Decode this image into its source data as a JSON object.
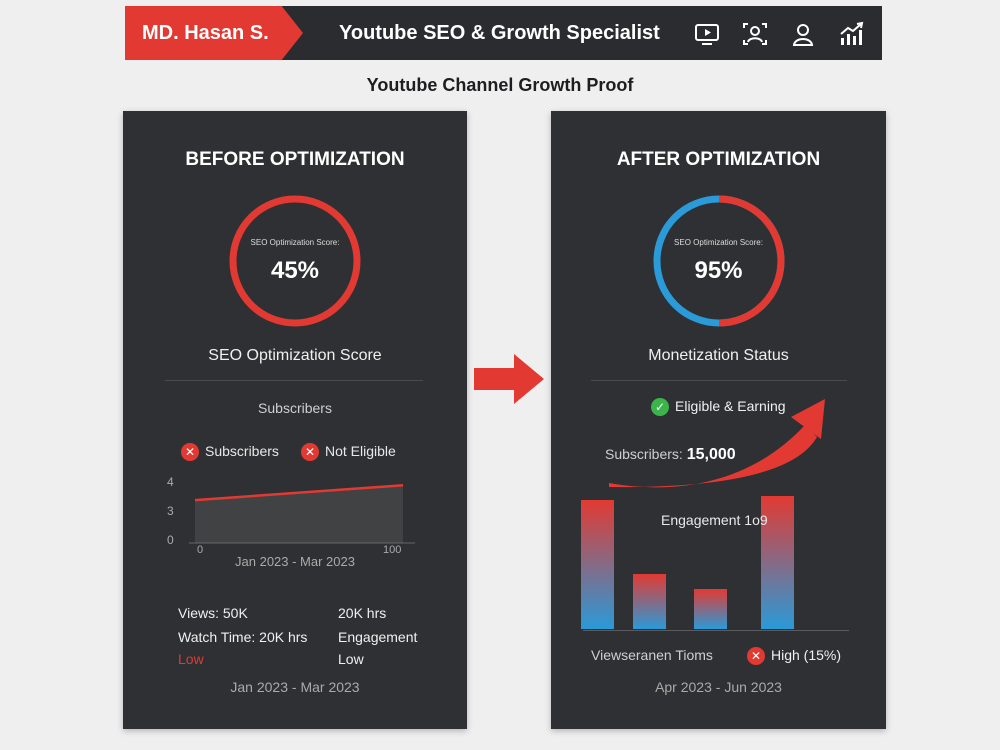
{
  "header": {
    "name": "MD. Hasan S.",
    "title": "Youtube SEO & Growth Specialist",
    "icons": [
      "video-play-icon",
      "audience-icon",
      "user-icon",
      "growth-chart-icon"
    ]
  },
  "subtitle": "Youtube Channel Growth Proof",
  "before": {
    "title": "BEFORE OPTIMIZATION",
    "ring_label": "SEO Optimization Score:",
    "ring_value": "45%",
    "ring_fraction": 0.45,
    "section_title": "SEO Optimization Score",
    "subs_heading": "Subscribers",
    "badge_subscribers": "Subscribers",
    "badge_eligible": "Not Eligible",
    "chart_data": {
      "type": "line",
      "y_ticks": [
        "4",
        "3",
        "0"
      ],
      "x_start": "0",
      "x_end": "100",
      "x_caption": "Jan 2023 - Mar 2023",
      "ylim": [
        0,
        4
      ],
      "series": [
        {
          "values": [
            2.6,
            3.5
          ]
        }
      ]
    },
    "views": "Views: 50K",
    "watch_time": "Watch Time: 20K hrs",
    "low_left": "Low",
    "hrs": "20K hrs",
    "engagement": "Engagement",
    "low_right": "Low",
    "footer_range": "Jan 2023 - Mar 2023"
  },
  "after": {
    "title": "AFTER OPTIMIZATION",
    "ring_label": "SEO Optimization Score:",
    "ring_value": "95%",
    "ring_fraction": 0.95,
    "section_title": "Monetization Status",
    "eligible": "Eligible & Earning",
    "subs_label": "Subscribers",
    "subs_value": "15,000",
    "engagement_label": "Engagement 1o9",
    "chart_data": {
      "type": "bar",
      "values": [
        0.87,
        0.37,
        0.27,
        0.9
      ]
    },
    "footer_left": "Viewseranen Tioms",
    "footer_right": "High (15%)",
    "footer_range": "Apr 2023 - Jun 2023"
  },
  "colors": {
    "accent_red": "#e23a32",
    "accent_blue": "#2a9ad8",
    "panel_bg": "#2f3033",
    "header_bg": "#2b2c30",
    "check_green": "#3bb54a"
  }
}
